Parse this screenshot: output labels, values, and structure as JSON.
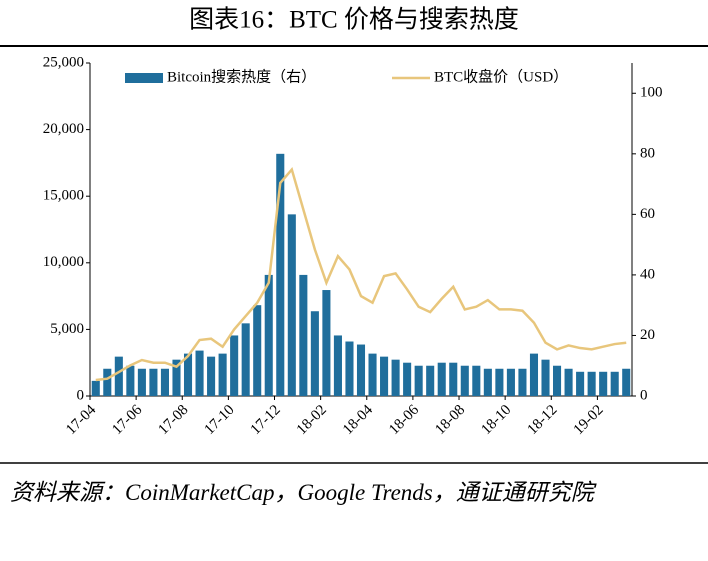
{
  "chart_data": {
    "type": "bar-line",
    "title": "图表16：BTC 价格与搜索热度",
    "source": "资料来源：CoinMarketCap，Google Trends，通证通研究院",
    "categories": [
      "17-04",
      null,
      null,
      null,
      "17-06",
      null,
      null,
      null,
      "17-08",
      null,
      null,
      null,
      "17-10",
      null,
      null,
      null,
      "17-12",
      null,
      null,
      null,
      "18-02",
      null,
      null,
      null,
      "18-04",
      null,
      null,
      null,
      "18-06",
      null,
      null,
      null,
      "18-08",
      null,
      null,
      null,
      "18-10",
      null,
      null,
      null,
      "18-12",
      null,
      null,
      null,
      "19-02",
      null,
      null
    ],
    "series": [
      {
        "name": "Bitcoin搜索热度（右）",
        "type": "bar",
        "axis": "y2",
        "color": "#1f6e9c",
        "values": [
          5,
          9,
          13,
          10,
          9,
          9,
          9,
          12,
          14,
          15,
          13,
          14,
          20,
          24,
          30,
          40,
          80,
          60,
          40,
          28,
          35,
          20,
          18,
          17,
          14,
          13,
          12,
          11,
          10,
          10,
          11,
          11,
          10,
          10,
          9,
          9,
          9,
          9,
          14,
          12,
          10,
          9,
          8,
          8,
          8,
          8,
          9
        ]
      },
      {
        "name": "BTC收盘价（USD）",
        "type": "line",
        "axis": "y",
        "color": "#e8c67c",
        "values": [
          1200,
          1300,
          1800,
          2300,
          2700,
          2500,
          2500,
          2200,
          3000,
          4200,
          4300,
          3700,
          5000,
          6000,
          7000,
          8500,
          16000,
          17000,
          14000,
          11000,
          8500,
          10500,
          9500,
          7500,
          7000,
          9000,
          9200,
          8000,
          6700,
          6300,
          7300,
          8200,
          6500,
          6700,
          7200,
          6500,
          6500,
          6400,
          5500,
          4000,
          3500,
          3800,
          3600,
          3500,
          3700,
          3900,
          4000
        ]
      }
    ],
    "ylim": [
      0,
      25000
    ],
    "yticks": [
      0,
      {
        "value": 5000,
        "label": "5,000"
      },
      {
        "value": 10000,
        "label": "10,000"
      },
      {
        "value": 15000,
        "label": "15,000"
      },
      {
        "value": 20000,
        "label": "20,000"
      },
      {
        "value": 25000,
        "label": "25,000"
      }
    ],
    "y2lim": [
      0,
      110
    ],
    "y2ticks": [
      0,
      20,
      40,
      60,
      80,
      100
    ],
    "legend": "top"
  }
}
